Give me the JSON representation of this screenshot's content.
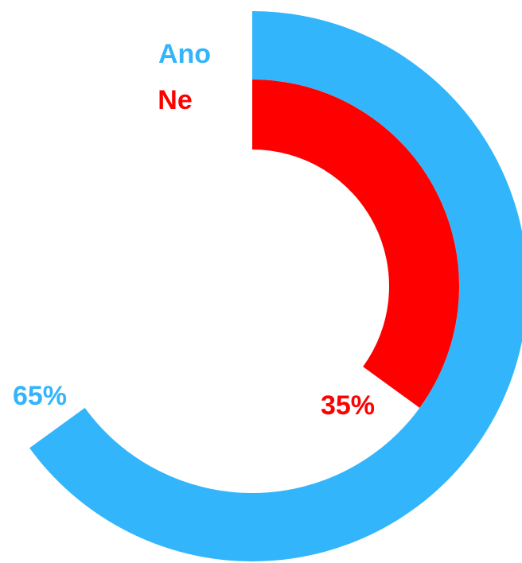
{
  "chart_data": {
    "type": "radial_bar",
    "series": [
      {
        "name": "Ano",
        "color": "#33b5fb",
        "values": [
          65
        ],
        "value_labels": [
          "65%"
        ]
      },
      {
        "name": "Ne",
        "color": "#ff0000",
        "values": [
          35
        ],
        "value_labels": [
          "35%"
        ]
      }
    ],
    "ylim": [
      0,
      100
    ]
  }
}
